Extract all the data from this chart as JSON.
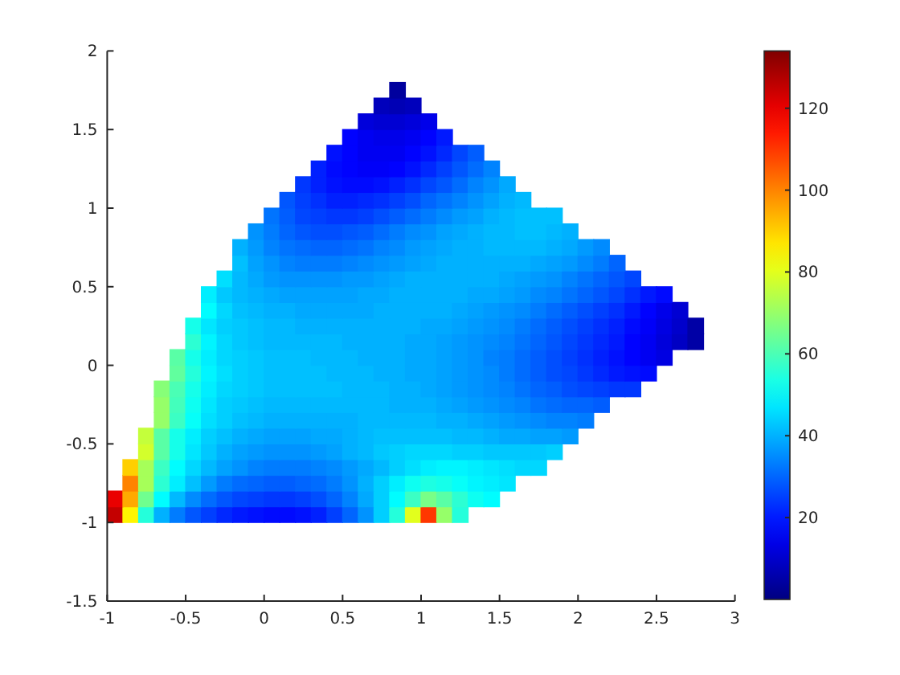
{
  "chart_data": {
    "type": "scatter",
    "marker": "square",
    "xlim": [
      -1,
      3
    ],
    "ylim": [
      -1.5,
      2
    ],
    "xticks": [
      -1,
      -0.5,
      0,
      0.5,
      1,
      1.5,
      2,
      2.5,
      3
    ],
    "yticks": [
      -1.5,
      -1,
      -0.5,
      0,
      0.5,
      1,
      1.5,
      2
    ],
    "clim": [
      0,
      134
    ],
    "cticks": [
      20,
      40,
      60,
      80,
      100,
      120
    ],
    "x": [
      -0.95,
      -0.85,
      -0.75,
      -0.65,
      -0.55,
      -0.45,
      -0.35,
      -0.25,
      -0.15,
      -0.05,
      0.05,
      0.15,
      0.25,
      0.35,
      0.45,
      0.55,
      0.65,
      0.75,
      0.85,
      0.95,
      1.05,
      1.15,
      1.25,
      -0.95,
      -0.85,
      -0.75,
      -0.65,
      -0.55,
      -0.45,
      -0.35,
      -0.25,
      -0.15,
      -0.05,
      0.05,
      0.15,
      0.25,
      0.35,
      0.45,
      0.55,
      0.65,
      0.75,
      0.85,
      0.95,
      1.05,
      1.15,
      1.25,
      1.35,
      1.45,
      -0.85,
      -0.75,
      -0.65,
      -0.55,
      -0.45,
      -0.35,
      -0.25,
      -0.15,
      -0.05,
      0.05,
      0.15,
      0.25,
      0.35,
      0.45,
      0.55,
      0.65,
      0.75,
      0.85,
      0.95,
      1.05,
      1.15,
      1.25,
      1.35,
      1.45,
      1.55,
      -0.85,
      -0.75,
      -0.65,
      -0.55,
      -0.45,
      -0.35,
      -0.25,
      -0.15,
      -0.05,
      0.05,
      0.15,
      0.25,
      0.35,
      0.45,
      0.55,
      0.65,
      0.75,
      0.85,
      0.95,
      1.05,
      1.15,
      1.25,
      1.35,
      1.45,
      1.55,
      1.65,
      1.75,
      -0.75,
      -0.65,
      -0.55,
      -0.45,
      -0.35,
      -0.25,
      -0.15,
      -0.05,
      0.05,
      0.15,
      0.25,
      0.35,
      0.45,
      0.55,
      0.65,
      0.75,
      0.85,
      0.95,
      1.05,
      1.15,
      1.25,
      1.35,
      1.45,
      1.55,
      1.65,
      1.75,
      1.85,
      -0.75,
      -0.65,
      -0.55,
      -0.45,
      -0.35,
      -0.25,
      -0.15,
      -0.05,
      0.05,
      0.15,
      0.25,
      0.35,
      0.45,
      0.55,
      0.65,
      0.75,
      0.85,
      0.95,
      1.05,
      1.15,
      1.25,
      1.35,
      1.45,
      1.55,
      1.65,
      1.75,
      1.85,
      1.95,
      -0.65,
      -0.55,
      -0.45,
      -0.35,
      -0.25,
      -0.15,
      -0.05,
      0.05,
      0.15,
      0.25,
      0.35,
      0.45,
      0.55,
      0.65,
      0.75,
      0.85,
      0.95,
      1.05,
      1.15,
      1.25,
      1.35,
      1.45,
      1.55,
      1.65,
      1.75,
      1.85,
      1.95,
      2.05,
      -0.65,
      -0.55,
      -0.45,
      -0.35,
      -0.25,
      -0.15,
      -0.05,
      0.05,
      0.15,
      0.25,
      0.35,
      0.45,
      0.55,
      0.65,
      0.75,
      0.85,
      0.95,
      1.05,
      1.15,
      1.25,
      1.35,
      1.45,
      1.55,
      1.65,
      1.75,
      1.85,
      1.95,
      2.05,
      2.15,
      -0.65,
      -0.55,
      -0.45,
      -0.35,
      -0.25,
      -0.15,
      -0.05,
      0.05,
      0.15,
      0.25,
      0.35,
      0.45,
      0.55,
      0.65,
      0.75,
      0.85,
      0.95,
      1.05,
      1.15,
      1.25,
      1.35,
      1.45,
      1.55,
      1.65,
      1.75,
      1.85,
      1.95,
      2.05,
      2.15,
      2.25,
      2.35,
      -0.55,
      -0.45,
      -0.35,
      -0.25,
      -0.15,
      -0.05,
      0.05,
      0.15,
      0.25,
      0.35,
      0.45,
      0.55,
      0.65,
      0.75,
      0.85,
      0.95,
      1.05,
      1.15,
      1.25,
      1.35,
      1.45,
      1.55,
      1.65,
      1.75,
      1.85,
      1.95,
      2.05,
      2.15,
      2.25,
      2.35,
      2.45,
      -0.55,
      -0.45,
      -0.35,
      -0.25,
      -0.15,
      -0.05,
      0.05,
      0.15,
      0.25,
      0.35,
      0.45,
      0.55,
      0.65,
      0.75,
      0.85,
      0.95,
      1.05,
      1.15,
      1.25,
      1.35,
      1.45,
      1.55,
      1.65,
      1.75,
      1.85,
      1.95,
      2.05,
      2.15,
      2.25,
      2.35,
      2.45,
      2.55,
      -0.45,
      -0.35,
      -0.25,
      -0.15,
      -0.05,
      0.05,
      0.15,
      0.25,
      0.35,
      0.45,
      0.55,
      0.65,
      0.75,
      0.85,
      0.95,
      1.05,
      1.15,
      1.25,
      1.35,
      1.45,
      1.55,
      1.65,
      1.75,
      1.85,
      1.95,
      2.05,
      2.15,
      2.25,
      2.35,
      2.45,
      2.55,
      2.65,
      2.75,
      -0.45,
      -0.35,
      -0.25,
      -0.15,
      -0.05,
      0.05,
      0.15,
      0.25,
      0.35,
      0.45,
      0.55,
      0.65,
      0.75,
      0.85,
      0.95,
      1.05,
      1.15,
      1.25,
      1.35,
      1.45,
      1.55,
      1.65,
      1.75,
      1.85,
      1.95,
      2.05,
      2.15,
      2.25,
      2.35,
      2.45,
      2.55,
      2.65,
      2.75,
      -0.35,
      -0.25,
      -0.15,
      -0.05,
      0.05,
      0.15,
      0.25,
      0.35,
      0.45,
      0.55,
      0.65,
      0.75,
      0.85,
      0.95,
      1.05,
      1.15,
      1.25,
      1.35,
      1.45,
      1.55,
      1.65,
      1.75,
      1.85,
      1.95,
      2.05,
      2.15,
      2.25,
      2.35,
      2.45,
      2.55,
      2.65,
      -0.35,
      -0.25,
      -0.15,
      -0.05,
      0.05,
      0.15,
      0.25,
      0.35,
      0.45,
      0.55,
      0.65,
      0.75,
      0.85,
      0.95,
      1.05,
      1.15,
      1.25,
      1.35,
      1.45,
      1.55,
      1.65,
      1.75,
      1.85,
      1.95,
      2.05,
      2.15,
      2.25,
      2.35,
      2.45,
      2.55,
      -0.25,
      -0.15,
      -0.05,
      0.05,
      0.15,
      0.25,
      0.35,
      0.45,
      0.55,
      0.65,
      0.75,
      0.85,
      0.95,
      1.05,
      1.15,
      1.25,
      1.35,
      1.45,
      1.55,
      1.65,
      1.75,
      1.85,
      1.95,
      2.05,
      2.15,
      2.25,
      2.35,
      -0.15,
      -0.05,
      0.05,
      0.15,
      0.25,
      0.35,
      0.45,
      0.55,
      0.65,
      0.75,
      0.85,
      0.95,
      1.05,
      1.15,
      1.25,
      1.35,
      1.45,
      1.55,
      1.65,
      1.75,
      1.85,
      1.95,
      2.05,
      2.15,
      2.25,
      -0.15,
      -0.05,
      0.05,
      0.15,
      0.25,
      0.35,
      0.45,
      0.55,
      0.65,
      0.75,
      0.85,
      0.95,
      1.05,
      1.15,
      1.25,
      1.35,
      1.45,
      1.55,
      1.65,
      1.75,
      1.85,
      1.95,
      2.05,
      2.15,
      -0.05,
      0.05,
      0.15,
      0.25,
      0.35,
      0.45,
      0.55,
      0.65,
      0.75,
      0.85,
      0.95,
      1.05,
      1.15,
      1.25,
      1.35,
      1.45,
      1.55,
      1.65,
      1.75,
      1.85,
      1.95,
      0.05,
      0.15,
      0.25,
      0.35,
      0.45,
      0.55,
      0.65,
      0.75,
      0.85,
      0.95,
      1.05,
      1.15,
      1.25,
      1.35,
      1.45,
      1.55,
      1.65,
      1.75,
      1.85,
      0.15,
      0.25,
      0.35,
      0.45,
      0.55,
      0.65,
      0.75,
      0.85,
      0.95,
      1.05,
      1.15,
      1.25,
      1.35,
      1.45,
      1.55,
      1.65,
      0.25,
      0.35,
      0.45,
      0.55,
      0.65,
      0.75,
      0.85,
      0.95,
      1.05,
      1.15,
      1.25,
      1.35,
      1.45,
      1.55,
      0.35,
      0.45,
      0.55,
      0.65,
      0.75,
      0.85,
      0.95,
      1.05,
      1.15,
      1.25,
      1.35,
      1.45,
      0.45,
      0.55,
      0.65,
      0.75,
      0.85,
      0.95,
      1.05,
      1.15,
      1.25,
      1.35,
      0.55,
      0.65,
      0.75,
      0.85,
      0.95,
      1.05,
      1.15,
      0.65,
      0.75,
      0.85,
      0.95,
      1.05,
      0.75,
      0.85,
      0.95,
      0.85
    ],
    "values": [
      -0.95,
      -0.95,
      -0.95,
      -0.95,
      -0.95,
      -0.95,
      -0.95,
      -0.95,
      -0.95,
      -0.95,
      -0.95,
      -0.95,
      -0.95,
      -0.95,
      -0.95,
      -0.95,
      -0.95,
      -0.95,
      -0.95,
      -0.95,
      -0.95,
      -0.95,
      -0.95,
      -0.85,
      -0.85,
      -0.85,
      -0.85,
      -0.85,
      -0.85,
      -0.85,
      -0.85,
      -0.85,
      -0.85,
      -0.85,
      -0.85,
      -0.85,
      -0.85,
      -0.85,
      -0.85,
      -0.85,
      -0.85,
      -0.85,
      -0.85,
      -0.85,
      -0.85,
      -0.85,
      -0.85,
      -0.85,
      -0.75,
      -0.75,
      -0.75,
      -0.75,
      -0.75,
      -0.75,
      -0.75,
      -0.75,
      -0.75,
      -0.75,
      -0.75,
      -0.75,
      -0.75,
      -0.75,
      -0.75,
      -0.75,
      -0.75,
      -0.75,
      -0.75,
      -0.75,
      -0.75,
      -0.75,
      -0.75,
      -0.75,
      -0.75,
      -0.65,
      -0.65,
      -0.65,
      -0.65,
      -0.65,
      -0.65,
      -0.65,
      -0.65,
      -0.65,
      -0.65,
      -0.65,
      -0.65,
      -0.65,
      -0.65,
      -0.65,
      -0.65,
      -0.65,
      -0.65,
      -0.65,
      -0.65,
      -0.65,
      -0.65,
      -0.65,
      -0.65,
      -0.65,
      -0.65,
      -0.65,
      -0.55,
      -0.55,
      -0.55,
      -0.55,
      -0.55,
      -0.55,
      -0.55,
      -0.55,
      -0.55,
      -0.55,
      -0.55,
      -0.55,
      -0.55,
      -0.55,
      -0.55,
      -0.55,
      -0.55,
      -0.55,
      -0.55,
      -0.55,
      -0.55,
      -0.55,
      -0.55,
      -0.55,
      -0.55,
      -0.55,
      -0.55,
      -0.45,
      -0.45,
      -0.45,
      -0.45,
      -0.45,
      -0.45,
      -0.45,
      -0.45,
      -0.45,
      -0.45,
      -0.45,
      -0.45,
      -0.45,
      -0.45,
      -0.45,
      -0.45,
      -0.45,
      -0.45,
      -0.45,
      -0.45,
      -0.45,
      -0.45,
      -0.45,
      -0.45,
      -0.45,
      -0.45,
      -0.45,
      -0.45,
      -0.35,
      -0.35,
      -0.35,
      -0.35,
      -0.35,
      -0.35,
      -0.35,
      -0.35,
      -0.35,
      -0.35,
      -0.35,
      -0.35,
      -0.35,
      -0.35,
      -0.35,
      -0.35,
      -0.35,
      -0.35,
      -0.35,
      -0.35,
      -0.35,
      -0.35,
      -0.35,
      -0.35,
      -0.35,
      -0.35,
      -0.35,
      -0.35,
      -0.25,
      -0.25,
      -0.25,
      -0.25,
      -0.25,
      -0.25,
      -0.25,
      -0.25,
      -0.25,
      -0.25,
      -0.25,
      -0.25,
      -0.25,
      -0.25,
      -0.25,
      -0.25,
      -0.25,
      -0.25,
      -0.25,
      -0.25,
      -0.25,
      -0.25,
      -0.25,
      -0.25,
      -0.25,
      -0.25,
      -0.25,
      -0.25,
      -0.25,
      -0.15,
      -0.15,
      -0.15,
      -0.15,
      -0.15,
      -0.15,
      -0.15,
      -0.15,
      -0.15,
      -0.15,
      -0.15,
      -0.15,
      -0.15,
      -0.15,
      -0.15,
      -0.15,
      -0.15,
      -0.15,
      -0.15,
      -0.15,
      -0.15,
      -0.15,
      -0.15,
      -0.15,
      -0.15,
      -0.15,
      -0.15,
      -0.15,
      -0.15,
      -0.15,
      -0.15,
      -0.05,
      -0.05,
      -0.05,
      -0.05,
      -0.05,
      -0.05,
      -0.05,
      -0.05,
      -0.05,
      -0.05,
      -0.05,
      -0.05,
      -0.05,
      -0.05,
      -0.05,
      -0.05,
      -0.05,
      -0.05,
      -0.05,
      -0.05,
      -0.05,
      -0.05,
      -0.05,
      -0.05,
      -0.05,
      -0.05,
      -0.05,
      -0.05,
      -0.05,
      -0.05,
      -0.05,
      0.05,
      0.05,
      0.05,
      0.05,
      0.05,
      0.05,
      0.05,
      0.05,
      0.05,
      0.05,
      0.05,
      0.05,
      0.05,
      0.05,
      0.05,
      0.05,
      0.05,
      0.05,
      0.05,
      0.05,
      0.05,
      0.05,
      0.05,
      0.05,
      0.05,
      0.05,
      0.05,
      0.05,
      0.05,
      0.05,
      0.05,
      0.05,
      0.15,
      0.15,
      0.15,
      0.15,
      0.15,
      0.15,
      0.15,
      0.15,
      0.15,
      0.15,
      0.15,
      0.15,
      0.15,
      0.15,
      0.15,
      0.15,
      0.15,
      0.15,
      0.15,
      0.15,
      0.15,
      0.15,
      0.15,
      0.15,
      0.15,
      0.15,
      0.15,
      0.15,
      0.15,
      0.15,
      0.15,
      0.15,
      0.15,
      0.25,
      0.25,
      0.25,
      0.25,
      0.25,
      0.25,
      0.25,
      0.25,
      0.25,
      0.25,
      0.25,
      0.25,
      0.25,
      0.25,
      0.25,
      0.25,
      0.25,
      0.25,
      0.25,
      0.25,
      0.25,
      0.25,
      0.25,
      0.25,
      0.25,
      0.25,
      0.25,
      0.25,
      0.25,
      0.25,
      0.25,
      0.25,
      0.25,
      0.35,
      0.35,
      0.35,
      0.35,
      0.35,
      0.35,
      0.35,
      0.35,
      0.35,
      0.35,
      0.35,
      0.35,
      0.35,
      0.35,
      0.35,
      0.35,
      0.35,
      0.35,
      0.35,
      0.35,
      0.35,
      0.35,
      0.35,
      0.35,
      0.35,
      0.35,
      0.35,
      0.35,
      0.35,
      0.35,
      0.35,
      0.45,
      0.45,
      0.45,
      0.45,
      0.45,
      0.45,
      0.45,
      0.45,
      0.45,
      0.45,
      0.45,
      0.45,
      0.45,
      0.45,
      0.45,
      0.45,
      0.45,
      0.45,
      0.45,
      0.45,
      0.45,
      0.45,
      0.45,
      0.45,
      0.45,
      0.45,
      0.45,
      0.45,
      0.45,
      0.45,
      0.55,
      0.55,
      0.55,
      0.55,
      0.55,
      0.55,
      0.55,
      0.55,
      0.55,
      0.55,
      0.55,
      0.55,
      0.55,
      0.55,
      0.55,
      0.55,
      0.55,
      0.55,
      0.55,
      0.55,
      0.55,
      0.55,
      0.55,
      0.55,
      0.55,
      0.55,
      0.55,
      0.65,
      0.65,
      0.65,
      0.65,
      0.65,
      0.65,
      0.65,
      0.65,
      0.65,
      0.65,
      0.65,
      0.65,
      0.65,
      0.65,
      0.65,
      0.65,
      0.65,
      0.65,
      0.65,
      0.65,
      0.65,
      0.65,
      0.65,
      0.65,
      0.65,
      0.75,
      0.75,
      0.75,
      0.75,
      0.75,
      0.75,
      0.75,
      0.75,
      0.75,
      0.75,
      0.75,
      0.75,
      0.75,
      0.75,
      0.75,
      0.75,
      0.75,
      0.75,
      0.75,
      0.75,
      0.75,
      0.75,
      0.75,
      0.75,
      0.85,
      0.85,
      0.85,
      0.85,
      0.85,
      0.85,
      0.85,
      0.85,
      0.85,
      0.85,
      0.85,
      0.85,
      0.85,
      0.85,
      0.85,
      0.85,
      0.85,
      0.85,
      0.85,
      0.85,
      0.85,
      0.95,
      0.95,
      0.95,
      0.95,
      0.95,
      0.95,
      0.95,
      0.95,
      0.95,
      0.95,
      0.95,
      0.95,
      0.95,
      0.95,
      0.95,
      0.95,
      0.95,
      0.95,
      0.95,
      1.05,
      1.05,
      1.05,
      1.05,
      1.05,
      1.05,
      1.05,
      1.05,
      1.05,
      1.05,
      1.05,
      1.05,
      1.05,
      1.05,
      1.05,
      1.05,
      1.15,
      1.15,
      1.15,
      1.15,
      1.15,
      1.15,
      1.15,
      1.15,
      1.15,
      1.15,
      1.15,
      1.15,
      1.15,
      1.15,
      1.25,
      1.25,
      1.25,
      1.25,
      1.25,
      1.25,
      1.25,
      1.25,
      1.25,
      1.25,
      1.25,
      1.25,
      1.35,
      1.35,
      1.35,
      1.35,
      1.35,
      1.35,
      1.35,
      1.35,
      1.35,
      1.35,
      1.45,
      1.45,
      1.45,
      1.45,
      1.45,
      1.45,
      1.45,
      1.55,
      1.55,
      1.55,
      1.55,
      1.55,
      1.65,
      1.65,
      1.65,
      1.75
    ],
    "cvalues": [
      125,
      85,
      55,
      40,
      33,
      28,
      25,
      22,
      20,
      19,
      18,
      18,
      19,
      21,
      25,
      30,
      36,
      44,
      55,
      80,
      110,
      70,
      55,
      120,
      95,
      65,
      50,
      41,
      35,
      31,
      28,
      26,
      25,
      24,
      24,
      25,
      27,
      30,
      34,
      39,
      44,
      50,
      58,
      66,
      62,
      56,
      52,
      50,
      100,
      72,
      56,
      48,
      42,
      37,
      33,
      31,
      30,
      29,
      29,
      30,
      31,
      33,
      36,
      40,
      44,
      48,
      52,
      54,
      53,
      51,
      49,
      48,
      47,
      90,
      72,
      58,
      50,
      45,
      41,
      38,
      36,
      34,
      33,
      33,
      33,
      34,
      35,
      37,
      39,
      41,
      44,
      46,
      48,
      49,
      49,
      48,
      47,
      46,
      45,
      45,
      78,
      62,
      53,
      47,
      43,
      40,
      38,
      37,
      36,
      36,
      36,
      37,
      38,
      40,
      41,
      43,
      44,
      45,
      45,
      45,
      44,
      44,
      43,
      43,
      43,
      43,
      44,
      76,
      62,
      53,
      48,
      44,
      42,
      40,
      39,
      38,
      38,
      38,
      39,
      39,
      40,
      41,
      42,
      42,
      42,
      42,
      42,
      41,
      41,
      40,
      39,
      39,
      38,
      38,
      37,
      70,
      58,
      51,
      46,
      44,
      42,
      41,
      40,
      40,
      40,
      40,
      40,
      40,
      41,
      41,
      41,
      41,
      41,
      40,
      40,
      39,
      38,
      37,
      36,
      35,
      34,
      34,
      33,
      70,
      59,
      52,
      47,
      44,
      43,
      42,
      41,
      41,
      41,
      41,
      41,
      41,
      41,
      41,
      40,
      40,
      40,
      39,
      38,
      37,
      36,
      35,
      34,
      32,
      31,
      30,
      30,
      29,
      68,
      60,
      53,
      48,
      45,
      44,
      43,
      42,
      42,
      42,
      42,
      42,
      41,
      41,
      41,
      40,
      40,
      39,
      38,
      37,
      36,
      35,
      34,
      32,
      30,
      29,
      27,
      26,
      25,
      24,
      24,
      63,
      55,
      49,
      46,
      44,
      43,
      42,
      42,
      42,
      42,
      41,
      41,
      41,
      40,
      40,
      39,
      39,
      38,
      37,
      36,
      35,
      33,
      31,
      29,
      27,
      26,
      24,
      22,
      20,
      19,
      18,
      62,
      53,
      48,
      45,
      44,
      43,
      42,
      42,
      42,
      41,
      41,
      41,
      40,
      40,
      40,
      39,
      39,
      38,
      37,
      36,
      34,
      33,
      31,
      29,
      27,
      25,
      23,
      21,
      19,
      17,
      15,
      13,
      56,
      49,
      45,
      43,
      42,
      41,
      41,
      41,
      41,
      41,
      40,
      40,
      40,
      40,
      39,
      39,
      38,
      37,
      36,
      35,
      34,
      32,
      30,
      28,
      26,
      24,
      22,
      20,
      17,
      15,
      12,
      9,
      5,
      53,
      47,
      44,
      43,
      42,
      41,
      41,
      40,
      40,
      40,
      40,
      40,
      40,
      40,
      40,
      39,
      39,
      38,
      37,
      36,
      35,
      33,
      31,
      29,
      27,
      25,
      23,
      21,
      18,
      16,
      13,
      10,
      5,
      50,
      45,
      42,
      41,
      40,
      40,
      39,
      39,
      39,
      39,
      39,
      40,
      40,
      40,
      40,
      40,
      39,
      38,
      37,
      36,
      35,
      33,
      31,
      29,
      27,
      25,
      23,
      20,
      17,
      14,
      11,
      48,
      43,
      41,
      40,
      39,
      38,
      38,
      38,
      38,
      38,
      39,
      39,
      40,
      40,
      40,
      40,
      40,
      39,
      39,
      38,
      37,
      35,
      34,
      32,
      30,
      28,
      26,
      23,
      20,
      18,
      46,
      41,
      39,
      37,
      36,
      36,
      36,
      36,
      37,
      37,
      38,
      39,
      40,
      40,
      40,
      40,
      40,
      40,
      39,
      38,
      37,
      36,
      34,
      32,
      30,
      28,
      26,
      42,
      38,
      36,
      34,
      33,
      33,
      33,
      34,
      35,
      36,
      37,
      38,
      39,
      40,
      40,
      40,
      40,
      40,
      40,
      39,
      38,
      37,
      35,
      33,
      30,
      40,
      37,
      34,
      32,
      31,
      30,
      30,
      31,
      32,
      34,
      35,
      37,
      38,
      39,
      40,
      40,
      41,
      41,
      41,
      41,
      40,
      39,
      37,
      35,
      36,
      33,
      30,
      28,
      27,
      27,
      28,
      29,
      31,
      33,
      35,
      36,
      38,
      39,
      40,
      41,
      41,
      42,
      42,
      41,
      40,
      32,
      29,
      26,
      25,
      24,
      24,
      25,
      27,
      29,
      31,
      33,
      35,
      37,
      38,
      40,
      41,
      42,
      42,
      42,
      28,
      25,
      23,
      21,
      21,
      22,
      23,
      25,
      27,
      30,
      32,
      34,
      36,
      38,
      40,
      41,
      24,
      21,
      19,
      18,
      18,
      19,
      21,
      23,
      26,
      28,
      31,
      34,
      36,
      39,
      21,
      18,
      17,
      16,
      16,
      17,
      19,
      22,
      25,
      28,
      31,
      34,
      19,
      17,
      15,
      15,
      15,
      17,
      19,
      22,
      26,
      29,
      17,
      15,
      14,
      14,
      15,
      17,
      20,
      12,
      11,
      11,
      12,
      14,
      8,
      7,
      8,
      4
    ]
  }
}
